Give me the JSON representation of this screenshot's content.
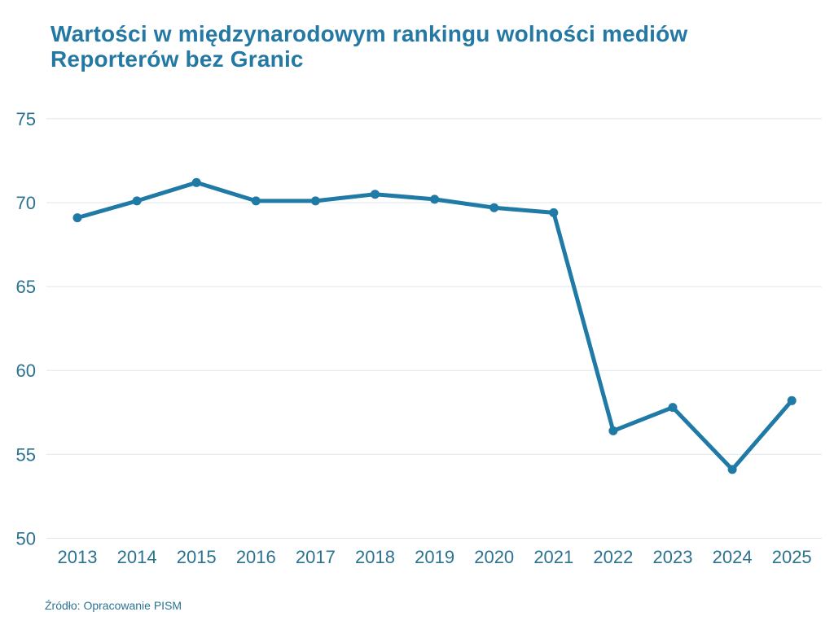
{
  "title": {
    "line1": "Wartości w międzynarodowym rankingu wolności mediów",
    "line2": "Reporterów bez Granic"
  },
  "source": {
    "text": "Źródło: Opracowanie PISM"
  },
  "colors": {
    "title": "#2478a4",
    "tick_labels": "#2b7291",
    "line": "#1f7aa6",
    "gridline": "#dde6ea",
    "background": "#ffffff"
  },
  "chart_data": {
    "type": "line",
    "title": "Wartości w międzynarodowym rankingu wolności mediów Reporterów bez Granic",
    "categories": [
      "2013",
      "2014",
      "2015",
      "2016",
      "2017",
      "2018",
      "2019",
      "2020",
      "2021",
      "2022",
      "2023",
      "2024",
      "2025"
    ],
    "values": [
      69.1,
      70.1,
      71.2,
      70.1,
      70.1,
      70.5,
      70.2,
      69.7,
      69.4,
      56.4,
      57.8,
      54.1,
      58.2
    ],
    "xlabel": "",
    "ylabel": "",
    "ylim": [
      50,
      75
    ],
    "yticks": [
      75,
      70,
      65,
      60,
      55,
      50
    ],
    "grid": "horizontal-only",
    "legend": "none",
    "marker": "circle",
    "source": "Źródło: Opracowanie PISM"
  }
}
